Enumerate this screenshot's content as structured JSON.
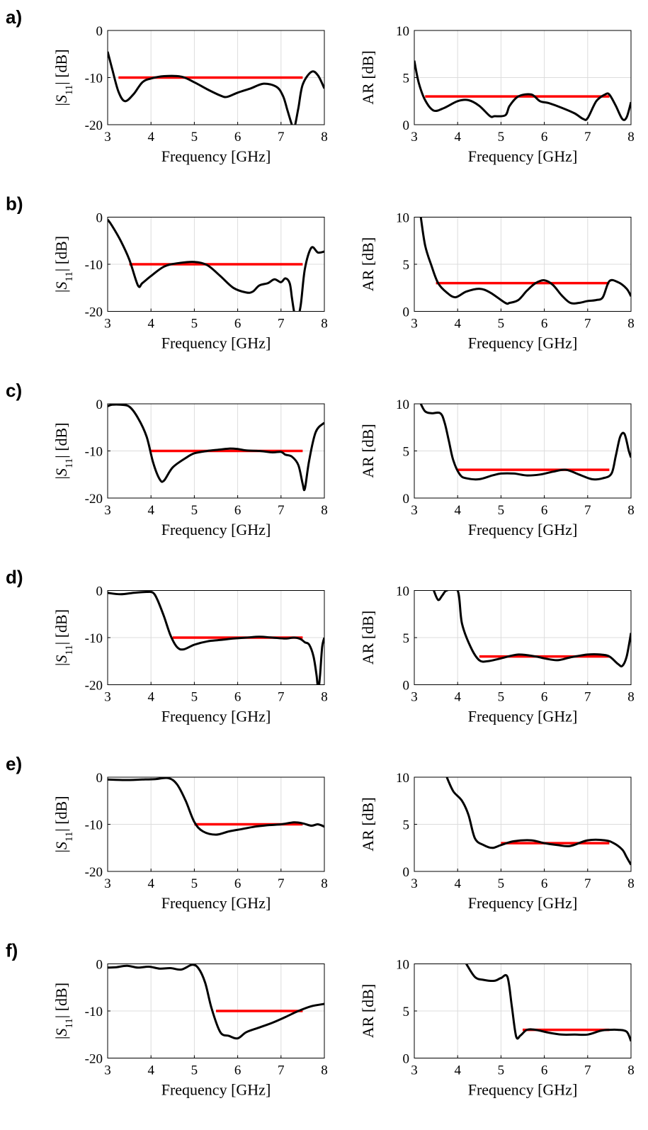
{
  "colors": {
    "curve": "#000000",
    "band": "#ff0000",
    "grid": "#dcdcdc",
    "axis": "#000000"
  },
  "chart_data": [
    {
      "panel": "a)",
      "type": "line",
      "metric": "S11",
      "xlabel": "Frequency [GHz]",
      "ylabel_parts": [
        "|",
        "S",
        "11",
        "| [dB]"
      ],
      "xlim": [
        3,
        8
      ],
      "ylim": [
        -20,
        0
      ],
      "xticks": [
        3,
        4,
        5,
        6,
        7,
        8
      ],
      "yticks": [
        -20,
        -10,
        0
      ],
      "grid": true,
      "x": [
        3.0,
        3.1,
        3.25,
        3.4,
        3.6,
        3.8,
        4.0,
        4.3,
        4.7,
        5.0,
        5.3,
        5.6,
        5.75,
        6.0,
        6.3,
        6.6,
        6.9,
        7.05,
        7.15,
        7.25,
        7.3,
        7.4,
        7.5,
        7.7,
        7.85,
        8.0
      ],
      "y": [
        -4.5,
        -8.0,
        -13.0,
        -15.0,
        -13.5,
        -11.0,
        -10.2,
        -9.7,
        -9.8,
        -11.0,
        -12.5,
        -13.8,
        -14.1,
        -13.2,
        -12.3,
        -11.3,
        -12.0,
        -14.0,
        -17.0,
        -20.0,
        -21.0,
        -16.5,
        -11.5,
        -8.8,
        -9.5,
        -12.3
      ],
      "band": {
        "x": [
          3.25,
          7.5
        ],
        "y": -10
      }
    },
    {
      "panel": "",
      "type": "line",
      "metric": "AR",
      "xlabel": "Frequency [GHz]",
      "ylabel": "AR [dB]",
      "xlim": [
        3,
        8
      ],
      "ylim": [
        0,
        10
      ],
      "xticks": [
        3,
        4,
        5,
        6,
        7,
        8
      ],
      "yticks": [
        0,
        5,
        10
      ],
      "grid": true,
      "x": [
        3.0,
        3.1,
        3.25,
        3.45,
        3.7,
        4.0,
        4.25,
        4.5,
        4.75,
        4.85,
        5.1,
        5.2,
        5.4,
        5.7,
        5.9,
        6.1,
        6.4,
        6.7,
        6.9,
        7.0,
        7.2,
        7.4,
        7.5,
        7.65,
        7.8,
        7.9,
        8.0
      ],
      "y": [
        6.8,
        4.5,
        2.6,
        1.5,
        1.8,
        2.5,
        2.6,
        2.0,
        0.9,
        0.9,
        1.0,
        2.0,
        3.0,
        3.2,
        2.5,
        2.3,
        1.8,
        1.2,
        0.6,
        0.7,
        2.5,
        3.2,
        3.2,
        2.0,
        0.6,
        0.8,
        2.4
      ],
      "band": {
        "x": [
          3.25,
          7.5
        ],
        "y": 3
      }
    },
    {
      "panel": "b)",
      "type": "line",
      "metric": "S11",
      "xlabel": "Frequency [GHz]",
      "ylabel_parts": [
        "|",
        "S",
        "11",
        "| [dB]"
      ],
      "xlim": [
        3,
        8
      ],
      "ylim": [
        -20,
        0
      ],
      "xticks": [
        3,
        4,
        5,
        6,
        7,
        8
      ],
      "yticks": [
        -20,
        -10,
        0
      ],
      "grid": true,
      "x": [
        3.0,
        3.1,
        3.3,
        3.5,
        3.7,
        3.8,
        4.0,
        4.3,
        4.6,
        5.0,
        5.3,
        5.6,
        5.9,
        6.2,
        6.35,
        6.5,
        6.7,
        6.85,
        7.0,
        7.1,
        7.2,
        7.25,
        7.3,
        7.35,
        7.45,
        7.55,
        7.7,
        7.85,
        8.0
      ],
      "y": [
        -0.5,
        -1.8,
        -5.0,
        -9.0,
        -14.5,
        -14.0,
        -12.5,
        -10.5,
        -9.8,
        -9.5,
        -10.2,
        -12.5,
        -15.0,
        -16.0,
        -15.8,
        -14.5,
        -14.0,
        -13.2,
        -13.8,
        -13.0,
        -14.0,
        -17.0,
        -20.0,
        -22.0,
        -19.0,
        -11.0,
        -6.5,
        -7.5,
        -7.3
      ],
      "band": {
        "x": [
          3.5,
          7.5
        ],
        "y": -10
      }
    },
    {
      "panel": "",
      "type": "line",
      "metric": "AR",
      "xlabel": "Frequency [GHz]",
      "ylabel": "AR [dB]",
      "xlim": [
        3,
        8
      ],
      "ylim": [
        0,
        10
      ],
      "xticks": [
        3,
        4,
        5,
        6,
        7,
        8
      ],
      "yticks": [
        0,
        5,
        10
      ],
      "grid": true,
      "x": [
        3.15,
        3.25,
        3.4,
        3.55,
        3.75,
        3.95,
        4.2,
        4.5,
        4.75,
        5.1,
        5.2,
        5.4,
        5.6,
        5.8,
        6.0,
        6.2,
        6.4,
        6.6,
        6.8,
        7.0,
        7.2,
        7.35,
        7.5,
        7.7,
        7.9,
        8.0
      ],
      "y": [
        10.0,
        7.0,
        4.8,
        3.0,
        2.0,
        1.5,
        2.1,
        2.4,
        2.0,
        0.9,
        0.9,
        1.2,
        2.2,
        3.0,
        3.3,
        2.8,
        1.7,
        0.9,
        0.9,
        1.1,
        1.2,
        1.5,
        3.2,
        3.1,
        2.4,
        1.6
      ],
      "band": {
        "x": [
          3.5,
          7.5
        ],
        "y": 3
      }
    },
    {
      "panel": "c)",
      "type": "line",
      "metric": "S11",
      "xlabel": "Frequency [GHz]",
      "ylabel_parts": [
        "|",
        "S",
        "11",
        "| [dB]"
      ],
      "xlim": [
        3,
        8
      ],
      "ylim": [
        -20,
        0
      ],
      "xticks": [
        3,
        4,
        5,
        6,
        7,
        8
      ],
      "yticks": [
        -20,
        -10,
        0
      ],
      "grid": true,
      "x": [
        3.0,
        3.1,
        3.3,
        3.5,
        3.7,
        3.9,
        4.05,
        4.2,
        4.3,
        4.5,
        4.8,
        5.0,
        5.3,
        5.6,
        5.8,
        6.0,
        6.2,
        6.5,
        6.8,
        7.0,
        7.1,
        7.25,
        7.4,
        7.5,
        7.55,
        7.65,
        7.8,
        8.0
      ],
      "y": [
        -0.5,
        -0.2,
        -0.2,
        -0.6,
        -3.0,
        -7.0,
        -12.5,
        -16.0,
        -16.3,
        -13.5,
        -11.5,
        -10.5,
        -10.0,
        -9.7,
        -9.5,
        -9.6,
        -9.9,
        -10.0,
        -10.3,
        -10.2,
        -10.8,
        -11.2,
        -13.0,
        -17.0,
        -18.0,
        -12.0,
        -6.0,
        -4.0
      ],
      "band": {
        "x": [
          4.0,
          7.5
        ],
        "y": -10
      }
    },
    {
      "panel": "",
      "type": "line",
      "metric": "AR",
      "xlabel": "Frequency [GHz]",
      "ylabel": "AR [dB]",
      "xlim": [
        3,
        8
      ],
      "ylim": [
        0,
        10
      ],
      "xticks": [
        3,
        4,
        5,
        6,
        7,
        8
      ],
      "yticks": [
        0,
        5,
        10
      ],
      "grid": true,
      "x": [
        3.15,
        3.25,
        3.4,
        3.6,
        3.7,
        3.8,
        3.9,
        4.05,
        4.2,
        4.5,
        4.8,
        5.0,
        5.3,
        5.6,
        5.9,
        6.2,
        6.5,
        6.8,
        7.1,
        7.35,
        7.55,
        7.65,
        7.75,
        7.85,
        7.95,
        8.0
      ],
      "y": [
        10.0,
        9.2,
        9.0,
        9.0,
        8.0,
        6.0,
        4.0,
        2.5,
        2.1,
        2.0,
        2.4,
        2.6,
        2.6,
        2.4,
        2.5,
        2.8,
        3.0,
        2.5,
        2.0,
        2.1,
        2.6,
        4.5,
        6.5,
        6.8,
        5.0,
        4.3
      ],
      "band": {
        "x": [
          4.0,
          7.5
        ],
        "y": 3
      }
    },
    {
      "panel": "d)",
      "type": "line",
      "metric": "S11",
      "xlabel": "Frequency [GHz]",
      "ylabel_parts": [
        "|",
        "S",
        "11",
        "| [dB]"
      ],
      "xlim": [
        3,
        8
      ],
      "ylim": [
        -20,
        0
      ],
      "xticks": [
        3,
        4,
        5,
        6,
        7,
        8
      ],
      "yticks": [
        -20,
        -10,
        0
      ],
      "grid": true,
      "x": [
        3.0,
        3.3,
        3.6,
        3.9,
        4.05,
        4.15,
        4.3,
        4.45,
        4.6,
        4.75,
        5.0,
        5.3,
        5.6,
        5.9,
        6.2,
        6.5,
        6.8,
        7.1,
        7.3,
        7.45,
        7.55,
        7.65,
        7.75,
        7.82,
        7.86,
        7.9,
        7.95,
        8.0
      ],
      "y": [
        -0.5,
        -0.8,
        -0.5,
        -0.3,
        -0.5,
        -2.0,
        -5.5,
        -9.5,
        -12.0,
        -12.5,
        -11.5,
        -10.8,
        -10.5,
        -10.2,
        -10.0,
        -9.8,
        -10.0,
        -10.2,
        -10.0,
        -10.3,
        -11.0,
        -11.5,
        -14.0,
        -18.0,
        -21.0,
        -18.0,
        -12.0,
        -10.0
      ],
      "band": {
        "x": [
          4.5,
          7.5
        ],
        "y": -10
      }
    },
    {
      "panel": "",
      "type": "line",
      "metric": "AR",
      "xlabel": "Frequency [GHz]",
      "ylabel": "AR [dB]",
      "xlim": [
        3,
        8
      ],
      "ylim": [
        0,
        10
      ],
      "xticks": [
        3,
        4,
        5,
        6,
        7,
        8
      ],
      "yticks": [
        0,
        5,
        10
      ],
      "grid": true,
      "x": [
        3.45,
        3.55,
        3.65,
        3.75,
        4.0,
        4.1,
        4.3,
        4.5,
        4.7,
        5.0,
        5.4,
        5.8,
        6.0,
        6.3,
        6.6,
        7.0,
        7.3,
        7.5,
        7.7,
        7.8,
        7.9,
        8.0
      ],
      "y": [
        10.0,
        9.0,
        9.5,
        10.0,
        10.0,
        6.5,
        4.0,
        2.6,
        2.5,
        2.8,
        3.2,
        3.0,
        2.8,
        2.6,
        2.9,
        3.2,
        3.2,
        3.0,
        2.2,
        2.0,
        3.0,
        5.5
      ],
      "band": {
        "x": [
          4.5,
          7.5
        ],
        "y": 3
      }
    },
    {
      "panel": "e)",
      "type": "line",
      "metric": "S11",
      "xlabel": "Frequency [GHz]",
      "ylabel_parts": [
        "|",
        "S",
        "11",
        "| [dB]"
      ],
      "xlim": [
        3,
        8
      ],
      "ylim": [
        -20,
        0
      ],
      "xticks": [
        3,
        4,
        5,
        6,
        7,
        8
      ],
      "yticks": [
        -20,
        -10,
        0
      ],
      "grid": true,
      "x": [
        3.0,
        3.4,
        3.8,
        4.1,
        4.4,
        4.6,
        4.8,
        5.0,
        5.2,
        5.5,
        5.8,
        6.1,
        6.4,
        6.7,
        7.0,
        7.3,
        7.5,
        7.7,
        7.85,
        8.0
      ],
      "y": [
        -0.5,
        -0.6,
        -0.5,
        -0.4,
        -0.2,
        -1.5,
        -5.0,
        -9.5,
        -11.5,
        -12.2,
        -11.5,
        -11.0,
        -10.5,
        -10.2,
        -10.0,
        -9.6,
        -9.8,
        -10.3,
        -10.0,
        -10.5
      ],
      "band": {
        "x": [
          5.0,
          7.5
        ],
        "y": -10
      }
    },
    {
      "panel": "",
      "type": "line",
      "metric": "AR",
      "xlabel": "Frequency [GHz]",
      "ylabel": "AR [dB]",
      "xlim": [
        3,
        8
      ],
      "ylim": [
        0,
        10
      ],
      "xticks": [
        3,
        4,
        5,
        6,
        7,
        8
      ],
      "yticks": [
        0,
        5,
        10
      ],
      "grid": true,
      "x": [
        3.75,
        3.9,
        4.1,
        4.25,
        4.4,
        4.6,
        4.8,
        5.0,
        5.3,
        5.7,
        6.0,
        6.3,
        6.6,
        7.0,
        7.4,
        7.6,
        7.8,
        7.9,
        8.0
      ],
      "y": [
        10.0,
        8.5,
        7.5,
        6.0,
        3.5,
        2.8,
        2.5,
        2.8,
        3.2,
        3.3,
        3.0,
        2.8,
        2.7,
        3.3,
        3.3,
        3.0,
        2.3,
        1.5,
        0.7
      ],
      "band": {
        "x": [
          5.0,
          7.5
        ],
        "y": 3
      }
    },
    {
      "panel": "f)",
      "type": "line",
      "metric": "S11",
      "xlabel": "Frequency [GHz]",
      "ylabel_parts": [
        "|",
        "S",
        "11",
        "| [dB]"
      ],
      "xlim": [
        3,
        8
      ],
      "ylim": [
        -20,
        0
      ],
      "xticks": [
        3,
        4,
        5,
        6,
        7,
        8
      ],
      "yticks": [
        -20,
        -10,
        0
      ],
      "grid": true,
      "x": [
        3.0,
        3.2,
        3.45,
        3.7,
        3.95,
        4.2,
        4.45,
        4.7,
        4.95,
        5.1,
        5.25,
        5.4,
        5.6,
        5.8,
        6.0,
        6.2,
        6.5,
        6.8,
        7.1,
        7.4,
        7.7,
        8.0
      ],
      "y": [
        -0.8,
        -0.7,
        -0.4,
        -0.8,
        -0.6,
        -1.0,
        -0.9,
        -1.2,
        -0.2,
        -1.0,
        -4.0,
        -9.5,
        -14.5,
        -15.3,
        -15.8,
        -14.5,
        -13.5,
        -12.5,
        -11.3,
        -10.0,
        -9.0,
        -8.5
      ],
      "band": {
        "x": [
          5.5,
          7.5
        ],
        "y": -10
      }
    },
    {
      "panel": "",
      "type": "line",
      "metric": "AR",
      "xlabel": "Frequency [GHz]",
      "ylabel": "AR [dB]",
      "xlim": [
        3,
        8
      ],
      "ylim": [
        0,
        10
      ],
      "xticks": [
        3,
        4,
        5,
        6,
        7,
        8
      ],
      "yticks": [
        0,
        5,
        10
      ],
      "grid": true,
      "x": [
        4.2,
        4.4,
        4.6,
        4.85,
        5.0,
        5.15,
        5.25,
        5.35,
        5.45,
        5.6,
        5.8,
        6.1,
        6.4,
        6.7,
        7.0,
        7.3,
        7.5,
        7.7,
        7.9,
        8.0
      ],
      "y": [
        10.0,
        8.6,
        8.3,
        8.2,
        8.5,
        8.6,
        5.5,
        2.3,
        2.4,
        3.0,
        3.0,
        2.7,
        2.5,
        2.5,
        2.5,
        2.9,
        3.0,
        3.0,
        2.8,
        1.8
      ],
      "band": {
        "x": [
          5.5,
          7.5
        ],
        "y": 3
      }
    }
  ]
}
